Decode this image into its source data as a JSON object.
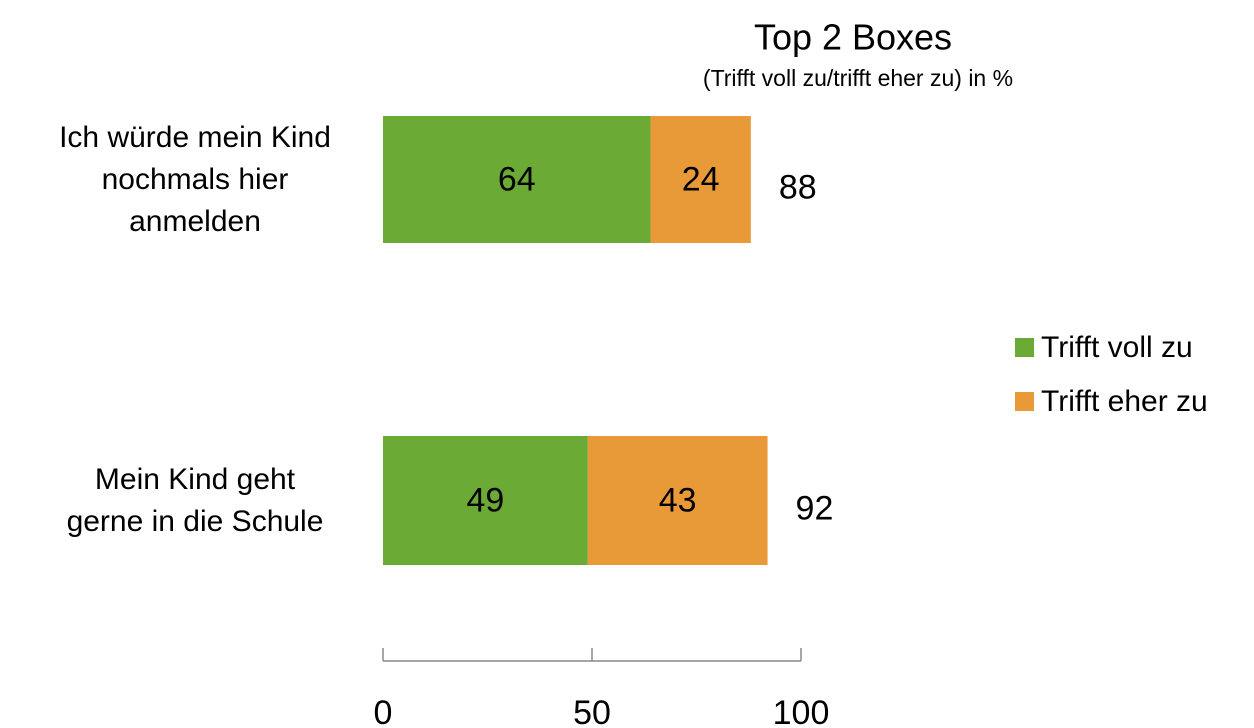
{
  "chart_data": {
    "type": "stacked-barh",
    "title": "Top 2 Boxes",
    "subtitle": "(Trifft voll zu/trifft eher zu) in %",
    "categories": [
      "Ich würde mein Kind\nnochmals hier\nanmelden",
      "Mein Kind geht\ngerne in die Schule"
    ],
    "series": [
      {
        "name": "Trifft voll zu",
        "color": "#6aaa35",
        "values": [
          64,
          49
        ]
      },
      {
        "name": "Trifft eher zu",
        "color": "#e99a38",
        "values": [
          24,
          43
        ]
      }
    ],
    "totals": [
      88,
      92
    ],
    "xlim": [
      0,
      100
    ],
    "xticks": [
      0,
      50,
      100
    ],
    "legend": "right",
    "grid": false
  }
}
